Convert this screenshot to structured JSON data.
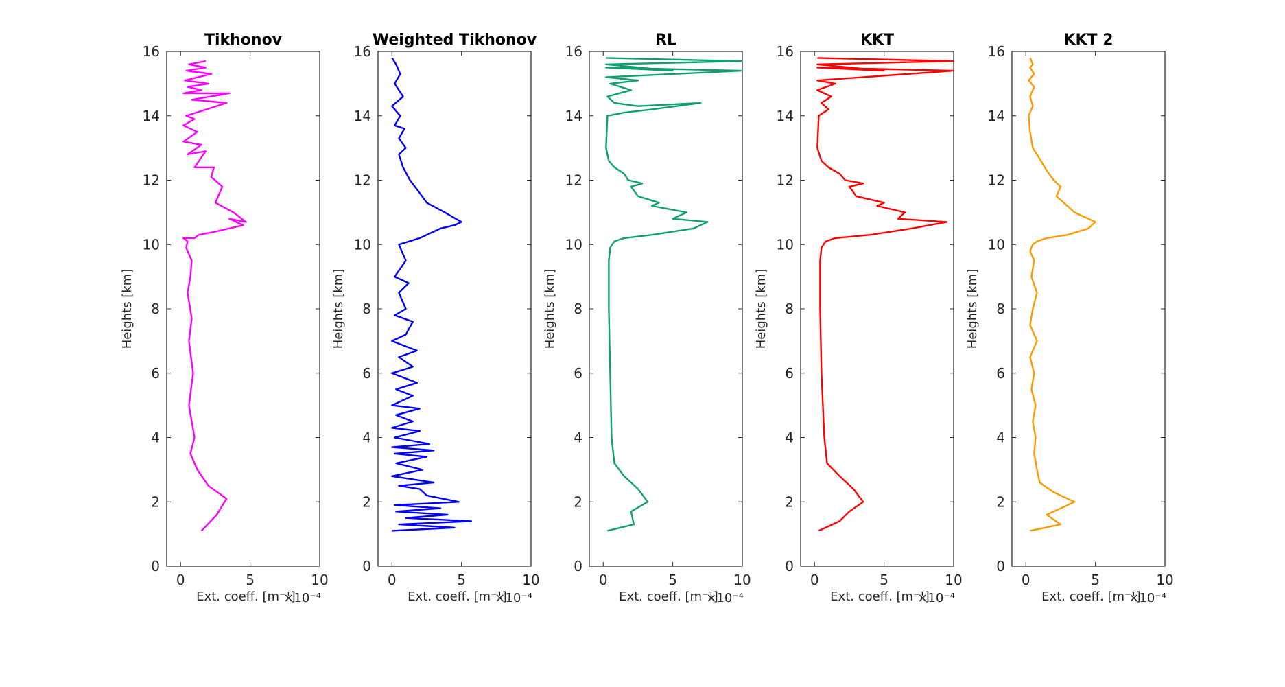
{
  "chart_data": [
    {
      "type": "line",
      "title": "Tikhonov",
      "color": "#ff00ff",
      "xlabel": "Ext. coeff. [m⁻¹]",
      "x_scale_label": "×10⁻⁴",
      "ylabel": "Heights [km]",
      "xlim": [
        -1,
        10
      ],
      "ylim": [
        0,
        16
      ],
      "xticks": [
        0,
        5,
        10
      ],
      "yticks": [
        0,
        2,
        4,
        6,
        8,
        10,
        12,
        14,
        16
      ],
      "x": [
        1.5,
        2.6,
        3.3,
        2.0,
        1.2,
        0.7,
        1.0,
        0.6,
        0.9,
        0.6,
        0.8,
        0.5,
        0.7,
        0.8,
        0.4,
        0.5,
        0.2,
        0.3,
        1.0,
        1.3,
        2.5,
        4.5,
        3.5,
        4.7,
        3.8,
        2.5,
        3.0,
        2.2,
        2.4,
        1.0,
        1.8,
        0.5,
        1.5,
        0.2,
        1.2,
        0.2,
        1.0,
        0.4,
        3.3,
        0.8,
        3.5,
        0.2,
        1.5,
        0.5,
        2.0,
        0.3,
        2.2,
        0.4,
        1.8,
        0.6,
        1.8
      ],
      "y": [
        1.1,
        1.6,
        2.1,
        2.5,
        3.0,
        3.5,
        4.0,
        5.0,
        6.0,
        7.0,
        7.7,
        8.5,
        9.0,
        9.5,
        9.9,
        10.1,
        10.2,
        10.2,
        10.2,
        10.3,
        10.4,
        10.6,
        10.8,
        10.7,
        11.0,
        11.3,
        11.8,
        12.1,
        12.4,
        12.4,
        12.9,
        12.8,
        13.1,
        13.2,
        13.5,
        13.7,
        13.9,
        14.0,
        14.4,
        14.5,
        14.7,
        14.7,
        14.8,
        14.9,
        15.0,
        15.1,
        15.3,
        15.4,
        15.5,
        15.6,
        15.7
      ]
    },
    {
      "type": "line",
      "title": "Weighted Tikhonov",
      "color": "#0000ff",
      "xlabel": "Ext. coeff. [m⁻¹]",
      "x_scale_label": "×10⁻⁴",
      "ylabel": "Heights [km]",
      "xlim": [
        -1,
        10
      ],
      "ylim": [
        0,
        16
      ],
      "xticks": [
        0,
        5,
        10
      ],
      "yticks": [
        0,
        2,
        4,
        6,
        8,
        10,
        12,
        14,
        16
      ],
      "x": [
        0.0,
        4.5,
        0.5,
        5.7,
        1.0,
        4.0,
        0.3,
        3.5,
        0.2,
        4.8,
        2.5,
        2.0,
        0.5,
        3.0,
        0.0,
        2.2,
        0.3,
        2.5,
        0.2,
        3.0,
        0.0,
        2.7,
        0.2,
        2.0,
        0.0,
        1.5,
        0.3,
        2.0,
        0.0,
        1.5,
        0.3,
        1.8,
        0.0,
        1.5,
        0.5,
        1.8,
        0.0,
        1.0,
        1.5,
        0.2,
        1.0,
        0.5,
        1.2,
        0.2,
        1.0,
        0.5,
        2.0,
        2.5,
        3.5,
        4.5,
        5.0,
        3.8,
        2.5,
        2.0,
        1.3,
        0.8,
        0.5,
        1.0,
        0.5,
        0.9,
        0.2,
        0.6,
        0.0,
        0.8,
        0.5,
        0.2,
        0.6,
        0.3,
        0.0
      ],
      "y": [
        1.1,
        1.2,
        1.3,
        1.4,
        1.5,
        1.6,
        1.7,
        1.8,
        1.9,
        2.0,
        2.2,
        2.4,
        2.5,
        2.6,
        2.8,
        3.0,
        3.2,
        3.4,
        3.5,
        3.6,
        3.7,
        3.8,
        4.0,
        4.2,
        4.3,
        4.5,
        4.7,
        4.9,
        5.0,
        5.3,
        5.5,
        5.7,
        6.0,
        6.2,
        6.5,
        6.7,
        7.0,
        7.2,
        7.6,
        7.8,
        8.0,
        8.5,
        8.8,
        9.0,
        9.5,
        10.0,
        10.2,
        10.3,
        10.5,
        10.6,
        10.7,
        11.0,
        11.3,
        11.6,
        12.0,
        12.4,
        12.8,
        13.0,
        13.3,
        13.6,
        13.7,
        14.0,
        14.3,
        14.6,
        14.8,
        15.0,
        15.3,
        15.6,
        15.8
      ]
    },
    {
      "type": "line",
      "title": "RL",
      "color": "#10a070",
      "xlabel": "Ext. coeff. [m⁻¹]",
      "x_scale_label": "×10⁻⁴",
      "ylabel": "Heights [km]",
      "xlim": [
        -1,
        10
      ],
      "ylim": [
        0,
        16
      ],
      "xticks": [
        0,
        5,
        10
      ],
      "yticks": [
        0,
        2,
        4,
        6,
        8,
        10,
        12,
        14,
        16
      ],
      "x": [
        0.3,
        2.2,
        2.0,
        3.2,
        2.5,
        1.5,
        0.8,
        0.6,
        0.5,
        0.4,
        0.4,
        0.5,
        0.8,
        1.5,
        3.5,
        6.5,
        7.5,
        5.0,
        6.0,
        3.5,
        4.0,
        2.5,
        2.0,
        2.8,
        1.8,
        1.5,
        0.8,
        0.4,
        0.2,
        0.3,
        1.5,
        3.5,
        7.0,
        2.5,
        0.8,
        0.3,
        2.0,
        0.5,
        2.5,
        0.2,
        10,
        0.2,
        5,
        0.2,
        10,
        0.2
      ],
      "y": [
        1.1,
        1.3,
        1.7,
        2.0,
        2.4,
        2.8,
        3.2,
        4.0,
        6.0,
        8.0,
        9.5,
        9.9,
        10.1,
        10.2,
        10.3,
        10.5,
        10.7,
        10.8,
        11.0,
        11.2,
        11.3,
        11.5,
        11.8,
        11.9,
        12.0,
        12.2,
        12.4,
        12.6,
        13.0,
        14.0,
        14.1,
        14.2,
        14.4,
        14.3,
        14.4,
        14.6,
        14.8,
        15.0,
        15.1,
        15.2,
        15.4,
        15.5,
        15.4,
        15.6,
        15.7,
        15.8
      ]
    },
    {
      "type": "line",
      "title": "KKT",
      "color": "#ff0000",
      "xlabel": "Ext. coeff. [m⁻¹]",
      "x_scale_label": "×10⁻⁴",
      "ylabel": "Heights [km]",
      "xlim": [
        -1,
        10
      ],
      "ylim": [
        0,
        16
      ],
      "xticks": [
        0,
        5,
        10
      ],
      "yticks": [
        0,
        2,
        4,
        6,
        8,
        10,
        12,
        14,
        16
      ],
      "x": [
        0.3,
        1.8,
        2.5,
        3.5,
        2.8,
        1.8,
        0.9,
        0.7,
        0.5,
        0.4,
        0.4,
        0.5,
        0.8,
        1.5,
        4.0,
        7.0,
        9.5,
        6.0,
        6.5,
        4.5,
        5.0,
        3.0,
        2.5,
        3.5,
        2.2,
        1.8,
        1.0,
        0.5,
        0.2,
        0.3,
        1.0,
        0.5,
        1.2,
        0.2,
        1.5,
        0.2,
        10,
        0.2,
        5,
        0.2,
        10,
        0.2
      ],
      "y": [
        1.1,
        1.4,
        1.7,
        2.0,
        2.4,
        2.8,
        3.2,
        4.0,
        6.0,
        8.0,
        9.5,
        9.9,
        10.1,
        10.2,
        10.3,
        10.5,
        10.7,
        10.8,
        11.0,
        11.2,
        11.3,
        11.5,
        11.8,
        11.9,
        12.0,
        12.2,
        12.4,
        12.6,
        13.0,
        14.0,
        14.2,
        14.4,
        14.6,
        14.8,
        15.0,
        15.1,
        15.4,
        15.5,
        15.4,
        15.6,
        15.7,
        15.8
      ]
    },
    {
      "type": "line",
      "title": "KKT 2",
      "color": "#ff9900",
      "xlabel": "Ext. coeff. [m⁻¹]",
      "x_scale_label": "×10⁻⁴",
      "ylabel": "Heights [km]",
      "xlim": [
        -1,
        10
      ],
      "ylim": [
        0,
        16
      ],
      "xticks": [
        0,
        5,
        10
      ],
      "yticks": [
        0,
        2,
        4,
        6,
        8,
        10,
        12,
        14,
        16
      ],
      "x": [
        0.3,
        2.5,
        1.5,
        3.5,
        2.0,
        1.0,
        0.8,
        0.6,
        0.7,
        0.5,
        0.7,
        0.4,
        0.6,
        0.3,
        0.8,
        0.3,
        0.5,
        0.8,
        0.4,
        0.6,
        0.3,
        0.5,
        0.8,
        1.5,
        3.0,
        4.5,
        5.0,
        4.0,
        3.5,
        2.2,
        2.5,
        2.0,
        1.5,
        0.8,
        0.5,
        0.3,
        0.2,
        0.5,
        0.3,
        0.6,
        0.2,
        0.6,
        0.3,
        0.5,
        0.3
      ],
      "y": [
        1.1,
        1.3,
        1.6,
        2.0,
        2.3,
        2.6,
        3.0,
        3.5,
        4.0,
        4.5,
        5.0,
        5.5,
        6.0,
        6.5,
        7.0,
        7.5,
        8.0,
        8.5,
        9.0,
        9.5,
        9.8,
        10.0,
        10.1,
        10.2,
        10.3,
        10.5,
        10.7,
        10.9,
        11.0,
        11.5,
        11.8,
        12.0,
        12.3,
        12.8,
        13.0,
        13.5,
        14.0,
        14.3,
        14.6,
        14.9,
        15.1,
        15.3,
        15.5,
        15.6,
        15.8
      ]
    }
  ]
}
